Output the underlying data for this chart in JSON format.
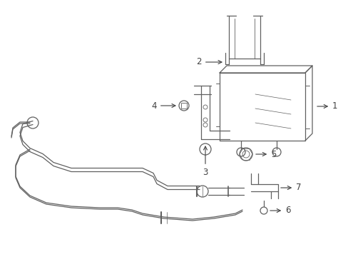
{
  "bg_color": "#ffffff",
  "line_color": "#606060",
  "label_color": "#404040",
  "lw": 0.9,
  "figsize": [
    4.89,
    3.6
  ],
  "dpi": 100,
  "xlim": [
    0,
    489
  ],
  "ylim": [
    0,
    360
  ]
}
